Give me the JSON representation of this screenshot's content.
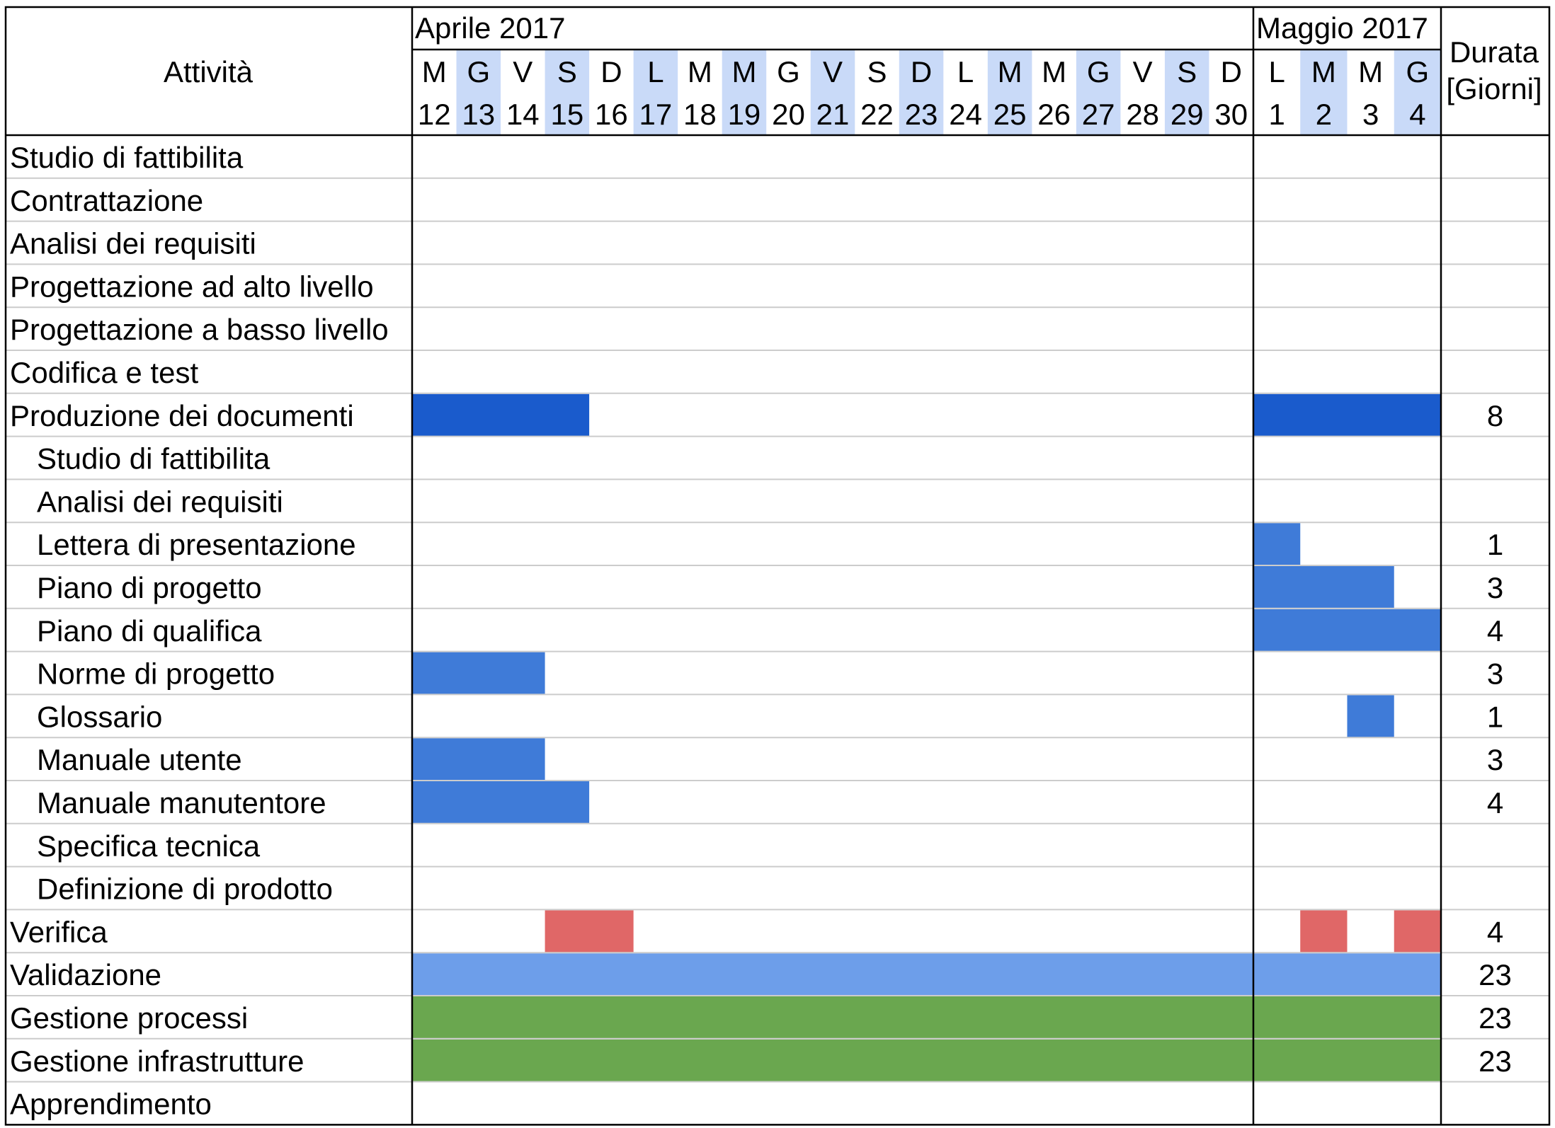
{
  "chart_data": {
    "type": "gantt",
    "header": {
      "activity_label": "Attività",
      "duration_label_line1": "Durata",
      "duration_label_line2": "[Giorni]"
    },
    "months": [
      {
        "label": "Aprile 2017",
        "days": [
          {
            "wd": "M",
            "d": "12",
            "hl": false
          },
          {
            "wd": "G",
            "d": "13",
            "hl": true
          },
          {
            "wd": "V",
            "d": "14",
            "hl": false
          },
          {
            "wd": "S",
            "d": "15",
            "hl": true
          },
          {
            "wd": "D",
            "d": "16",
            "hl": false
          },
          {
            "wd": "L",
            "d": "17",
            "hl": true
          },
          {
            "wd": "M",
            "d": "18",
            "hl": false
          },
          {
            "wd": "M",
            "d": "19",
            "hl": true
          },
          {
            "wd": "G",
            "d": "20",
            "hl": false
          },
          {
            "wd": "V",
            "d": "21",
            "hl": true
          },
          {
            "wd": "S",
            "d": "22",
            "hl": false
          },
          {
            "wd": "D",
            "d": "23",
            "hl": true
          },
          {
            "wd": "L",
            "d": "24",
            "hl": false
          },
          {
            "wd": "M",
            "d": "25",
            "hl": true
          },
          {
            "wd": "M",
            "d": "26",
            "hl": false
          },
          {
            "wd": "G",
            "d": "27",
            "hl": true
          },
          {
            "wd": "V",
            "d": "28",
            "hl": false
          },
          {
            "wd": "S",
            "d": "29",
            "hl": true
          },
          {
            "wd": "D",
            "d": "30",
            "hl": false
          }
        ]
      },
      {
        "label": "Maggio 2017",
        "days": [
          {
            "wd": "L",
            "d": "1",
            "hl": false
          },
          {
            "wd": "M",
            "d": "2",
            "hl": true
          },
          {
            "wd": "M",
            "d": "3",
            "hl": false
          },
          {
            "wd": "G",
            "d": "4",
            "hl": true
          }
        ]
      }
    ],
    "colors": {
      "dark_blue": "#1a5bcc",
      "blue": "#3f7bd8",
      "light_blue": "#6d9eea",
      "red": "#e06767",
      "green": "#6aa74f",
      "day_highlight": "#c9daf8",
      "grid": "#cccccc"
    },
    "activities": [
      {
        "name": "Studio di fattibilita",
        "indent": false,
        "duration": "",
        "bars": []
      },
      {
        "name": "Contrattazione",
        "indent": false,
        "duration": "",
        "bars": []
      },
      {
        "name": "Analisi dei requisiti",
        "indent": false,
        "duration": "",
        "bars": []
      },
      {
        "name": "Progettazione ad alto livello",
        "indent": false,
        "duration": "",
        "bars": []
      },
      {
        "name": "Progettazione a basso livello",
        "indent": false,
        "duration": "",
        "bars": []
      },
      {
        "name": "Codifica e test",
        "indent": false,
        "duration": "",
        "bars": []
      },
      {
        "name": "Produzione dei documenti",
        "indent": false,
        "duration": "8",
        "bars": [
          {
            "from": "2017-04-12",
            "to": "2017-04-15",
            "color": "dark_blue"
          },
          {
            "from": "2017-05-01",
            "to": "2017-05-04",
            "color": "dark_blue"
          }
        ]
      },
      {
        "name": "Studio di fattibilita",
        "indent": true,
        "duration": "",
        "bars": []
      },
      {
        "name": "Analisi dei requisiti",
        "indent": true,
        "duration": "",
        "bars": []
      },
      {
        "name": "Lettera di presentazione",
        "indent": true,
        "duration": "1",
        "bars": [
          {
            "from": "2017-05-01",
            "to": "2017-05-01",
            "color": "blue"
          }
        ]
      },
      {
        "name": "Piano di progetto",
        "indent": true,
        "duration": "3",
        "bars": [
          {
            "from": "2017-05-01",
            "to": "2017-05-03",
            "color": "blue"
          }
        ]
      },
      {
        "name": "Piano di qualifica",
        "indent": true,
        "duration": "4",
        "bars": [
          {
            "from": "2017-05-01",
            "to": "2017-05-04",
            "color": "blue"
          }
        ]
      },
      {
        "name": "Norme di progetto",
        "indent": true,
        "duration": "3",
        "bars": [
          {
            "from": "2017-04-12",
            "to": "2017-04-14",
            "color": "blue"
          }
        ]
      },
      {
        "name": "Glossario",
        "indent": true,
        "duration": "1",
        "bars": [
          {
            "from": "2017-05-03",
            "to": "2017-05-03",
            "color": "blue"
          }
        ]
      },
      {
        "name": "Manuale utente",
        "indent": true,
        "duration": "3",
        "bars": [
          {
            "from": "2017-04-12",
            "to": "2017-04-14",
            "color": "blue"
          }
        ]
      },
      {
        "name": "Manuale manutentore",
        "indent": true,
        "duration": "4",
        "bars": [
          {
            "from": "2017-04-12",
            "to": "2017-04-15",
            "color": "blue"
          }
        ]
      },
      {
        "name": "Specifica tecnica",
        "indent": true,
        "duration": "",
        "bars": []
      },
      {
        "name": "Definizione di prodotto",
        "indent": true,
        "duration": "",
        "bars": []
      },
      {
        "name": "Verifica",
        "indent": false,
        "duration": "4",
        "bars": [
          {
            "from": "2017-04-15",
            "to": "2017-04-16",
            "color": "red"
          },
          {
            "from": "2017-05-02",
            "to": "2017-05-02",
            "color": "red"
          },
          {
            "from": "2017-05-04",
            "to": "2017-05-04",
            "color": "red"
          }
        ]
      },
      {
        "name": "Validazione",
        "indent": false,
        "duration": "23",
        "bars": [
          {
            "from": "2017-04-12",
            "to": "2017-05-04",
            "color": "light_blue"
          }
        ]
      },
      {
        "name": "Gestione processi",
        "indent": false,
        "duration": "23",
        "bars": [
          {
            "from": "2017-04-12",
            "to": "2017-05-04",
            "color": "green"
          }
        ]
      },
      {
        "name": "Gestione infrastrutture",
        "indent": false,
        "duration": "23",
        "bars": [
          {
            "from": "2017-04-12",
            "to": "2017-05-04",
            "color": "green"
          }
        ]
      },
      {
        "name": "Apprendimento",
        "indent": false,
        "duration": "",
        "bars": []
      }
    ]
  }
}
